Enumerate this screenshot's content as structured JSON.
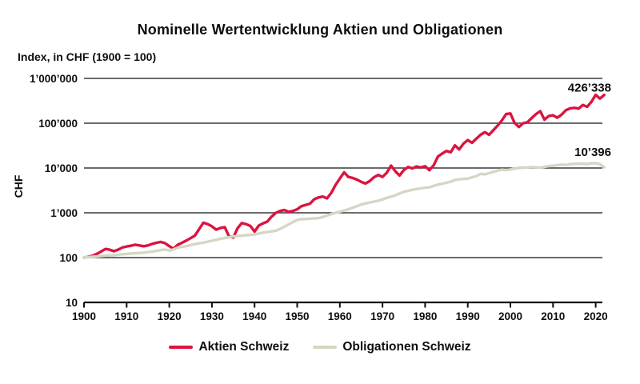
{
  "header": {
    "title": "Nominelle Wertentwicklung Aktien und Obligationen",
    "subtitle": "Index, in CHF (1900 = 100)"
  },
  "colors": {
    "background": "#ffffff",
    "grid": "#3a3a3a",
    "axis": "#0e0e0e",
    "text": "#0e0e0e"
  },
  "chart_data": {
    "type": "line",
    "title": "Nominelle Wertentwicklung Aktien und Obligationen",
    "subtitle": "Index, in CHF (1900 = 100)",
    "ylabel": "CHF",
    "xlabel": "",
    "y_scale": "log",
    "ylim": [
      10,
      1000000
    ],
    "xlim": [
      1900,
      2022
    ],
    "grid": "horizontal",
    "legend_position": "bottom-center",
    "y_ticks": [
      {
        "value": 1000000,
        "label": "1’000’000"
      },
      {
        "value": 100000,
        "label": "100’000"
      },
      {
        "value": 10000,
        "label": "10’000"
      },
      {
        "value": 1000,
        "label": "1’000"
      },
      {
        "value": 100,
        "label": "100"
      },
      {
        "value": 10,
        "label": "10"
      }
    ],
    "x_ticks": [
      1900,
      1910,
      1920,
      1930,
      1940,
      1950,
      1960,
      1970,
      1980,
      1990,
      2000,
      2010,
      2020
    ],
    "x_start": 1900,
    "x_step": 1,
    "series": [
      {
        "name": "Aktien Schweiz",
        "color": "#db1440",
        "end_label": "426’338",
        "values": [
          100,
          104,
          110,
          121,
          136,
          156,
          150,
          139,
          150,
          168,
          177,
          184,
          194,
          187,
          179,
          187,
          203,
          214,
          224,
          210,
          180,
          158,
          194,
          215,
          240,
          272,
          310,
          430,
          600,
          560,
          500,
          420,
          460,
          480,
          300,
          280,
          450,
          590,
          560,
          510,
          380,
          520,
          580,
          640,
          820,
          1000,
          1100,
          1150,
          1050,
          1100,
          1200,
          1400,
          1500,
          1600,
          2000,
          2200,
          2300,
          2100,
          2800,
          4200,
          5800,
          8000,
          6300,
          6000,
          5500,
          4900,
          4500,
          5100,
          6200,
          7000,
          6300,
          7800,
          11300,
          8500,
          6800,
          9000,
          10500,
          9800,
          10800,
          10300,
          11000,
          8900,
          11500,
          18000,
          21000,
          24000,
          22500,
          32000,
          26000,
          35000,
          42000,
          36500,
          45000,
          55000,
          63000,
          55000,
          70000,
          88000,
          115000,
          160000,
          165000,
          101000,
          82000,
          100000,
          105000,
          130000,
          160000,
          185000,
          120000,
          145000,
          150000,
          133000,
          155000,
          195000,
          215000,
          220000,
          212000,
          255000,
          232000,
          300000,
          430000,
          355000,
          426338
        ]
      },
      {
        "name": "Obligationen Schweiz",
        "color": "#d4d7c5",
        "end_label": "10’396",
        "values": [
          100,
          102,
          104,
          106,
          108,
          111,
          112,
          113,
          116,
          119,
          121,
          123,
          125,
          127,
          129,
          132,
          136,
          141,
          147,
          152,
          143,
          152,
          168,
          174,
          180,
          190,
          200,
          208,
          216,
          226,
          238,
          250,
          263,
          273,
          285,
          296,
          302,
          310,
          317,
          320,
          328,
          345,
          360,
          372,
          384,
          400,
          440,
          490,
          550,
          620,
          690,
          720,
          730,
          740,
          750,
          760,
          800,
          870,
          940,
          1000,
          1060,
          1120,
          1200,
          1300,
          1400,
          1530,
          1620,
          1700,
          1780,
          1850,
          1980,
          2150,
          2300,
          2450,
          2700,
          2950,
          3100,
          3250,
          3400,
          3500,
          3630,
          3700,
          4000,
          4250,
          4450,
          4700,
          4950,
          5400,
          5600,
          5700,
          5800,
          6200,
          6600,
          7400,
          7200,
          7700,
          8200,
          8700,
          9200,
          9000,
          9300,
          9700,
          10100,
          10200,
          10300,
          10500,
          10350,
          10150,
          10600,
          11000,
          11200,
          11600,
          11900,
          11600,
          12200,
          12400,
          12500,
          12400,
          12300,
          12700,
          12800,
          12200,
          10396
        ]
      }
    ]
  }
}
